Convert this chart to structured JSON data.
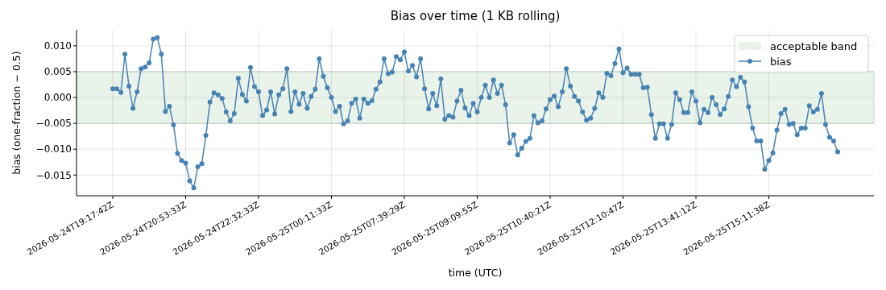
{
  "chart_data": {
    "type": "line",
    "title": "Bias over time (1 KB rolling)",
    "xlabel": "time (UTC)",
    "ylabel": "bias (one-fraction − 0.5)",
    "categories": [
      "2026-05-24T19:17:42Z",
      null,
      null,
      null,
      null,
      null,
      null,
      null,
      null,
      null,
      null,
      null,
      null,
      null,
      null,
      null,
      null,
      null,
      "2026-05-24T20:53:33Z",
      null,
      null,
      null,
      null,
      null,
      null,
      null,
      null,
      null,
      null,
      null,
      null,
      null,
      null,
      null,
      null,
      null,
      "2026-05-24T22:32:33Z",
      null,
      null,
      null,
      null,
      null,
      null,
      null,
      null,
      null,
      null,
      null,
      null,
      null,
      null,
      null,
      null,
      null,
      "2026-05-25T00:11:33Z",
      null,
      null,
      null,
      null,
      null,
      null,
      null,
      null,
      null,
      null,
      null,
      null,
      null,
      null,
      null,
      null,
      null,
      "2026-05-25T07:39:29Z",
      null,
      null,
      null,
      null,
      null,
      null,
      null,
      null,
      null,
      null,
      null,
      null,
      null,
      null,
      null,
      null,
      null,
      "2026-05-25T09:09:55Z",
      null,
      null,
      null,
      null,
      null,
      null,
      null,
      null,
      null,
      null,
      null,
      null,
      null,
      null,
      null,
      null,
      null,
      "2026-05-25T10:40:21Z",
      null,
      null,
      null,
      null,
      null,
      null,
      null,
      null,
      null,
      null,
      null,
      null,
      null,
      null,
      null,
      null,
      null,
      "2026-05-25T12:10:47Z",
      null,
      null,
      null,
      null,
      null,
      null,
      null,
      null,
      null,
      null,
      null,
      null,
      null,
      null,
      null,
      null,
      null,
      "2026-05-25T13:41:12Z",
      null,
      null,
      null,
      null,
      null,
      null,
      null,
      null,
      null,
      null,
      null,
      null,
      null,
      null,
      null,
      null,
      null,
      "2026-05-25T15:11:38Z",
      null,
      null,
      null,
      null,
      null,
      null,
      null,
      null,
      null,
      null,
      null,
      null,
      null,
      null,
      null,
      null,
      null
    ],
    "series": [
      {
        "name": "bias",
        "color": "#4682b4",
        "values": [
          0.0017,
          0.0017,
          0.001,
          0.0084,
          0.0022,
          -0.0021,
          0.0011,
          0.0056,
          0.0059,
          0.0067,
          0.0113,
          0.0116,
          0.0084,
          -0.0027,
          -0.0017,
          -0.0053,
          -0.0108,
          -0.0122,
          -0.0127,
          -0.0161,
          -0.0175,
          -0.0134,
          -0.0128,
          -0.0073,
          -0.0009,
          0.0009,
          0.0005,
          -0.0002,
          -0.0028,
          -0.0045,
          -0.0031,
          0.0037,
          0.0006,
          -0.0007,
          0.0058,
          0.0021,
          0.0011,
          -0.0035,
          -0.0024,
          0.0011,
          -0.0032,
          0.0005,
          0.0017,
          0.0056,
          -0.0027,
          0.0011,
          -0.0013,
          0.0008,
          -0.0021,
          0.0002,
          0.0016,
          0.0075,
          0.0041,
          0.0019,
          0.0,
          -0.0027,
          -0.0017,
          -0.0051,
          -0.0045,
          -0.0011,
          -0.0003,
          -0.004,
          -0.0003,
          -0.0011,
          -0.0006,
          0.0016,
          0.003,
          0.0075,
          0.0046,
          0.0049,
          0.0079,
          0.0073,
          0.0088,
          0.0051,
          0.0062,
          0.004,
          0.0075,
          0.0017,
          -0.0022,
          0.0008,
          -0.0016,
          0.0036,
          -0.0042,
          -0.0035,
          -0.0038,
          -0.0007,
          0.0014,
          -0.002,
          -0.0035,
          -0.0011,
          -0.0028,
          0.0,
          0.0024,
          0.0,
          0.0034,
          0.0008,
          0.0024,
          -0.0014,
          -0.0088,
          -0.0072,
          -0.0111,
          -0.0098,
          -0.0085,
          -0.0079,
          -0.0035,
          -0.0049,
          -0.0045,
          -0.0022,
          -0.0004,
          0.0003,
          -0.0018,
          0.0011,
          0.0056,
          0.0022,
          0.0002,
          -0.0007,
          -0.0028,
          -0.0044,
          -0.004,
          -0.0021,
          0.0009,
          0.0,
          0.0047,
          0.0042,
          0.0066,
          0.0094,
          0.0048,
          0.0057,
          0.0045,
          0.0045,
          0.0045,
          0.0019,
          0.002,
          -0.0033,
          -0.0079,
          -0.0051,
          -0.0051,
          -0.0079,
          -0.0052,
          0.0009,
          -0.0004,
          -0.0029,
          -0.0029,
          0.0011,
          -0.0007,
          -0.0049,
          -0.0023,
          -0.0029,
          0.0,
          -0.0014,
          -0.0033,
          -0.0022,
          0.0002,
          0.0034,
          0.0021,
          0.0039,
          0.003,
          -0.0018,
          -0.0059,
          -0.0084,
          -0.0084,
          -0.0139,
          -0.0122,
          -0.0107,
          -0.0063,
          -0.0031,
          -0.0023,
          -0.0052,
          -0.005,
          -0.0072,
          -0.0059,
          -0.0059,
          -0.0016,
          -0.0028,
          -0.0023,
          0.0008,
          -0.0052,
          -0.0077,
          -0.0084,
          -0.0105
        ]
      }
    ],
    "ylim": [
      -0.019,
      0.0131
    ],
    "yticks": [
      {
        "value": -0.015,
        "label": "−0.015"
      },
      {
        "value": -0.01,
        "label": "−0.010"
      },
      {
        "value": -0.005,
        "label": "−0.005"
      },
      {
        "value": 0,
        "label": "0.000"
      },
      {
        "value": 0.005,
        "label": "0.005"
      },
      {
        "value": 0.01,
        "label": "0.010"
      }
    ],
    "bands": [
      {
        "axis": "y",
        "from": -0.005,
        "to": 0.005,
        "label": "acceptable band",
        "color": "#e9f3e9"
      }
    ],
    "grid": true,
    "legend": "top right",
    "marker": "circle",
    "line_style": "solid"
  }
}
